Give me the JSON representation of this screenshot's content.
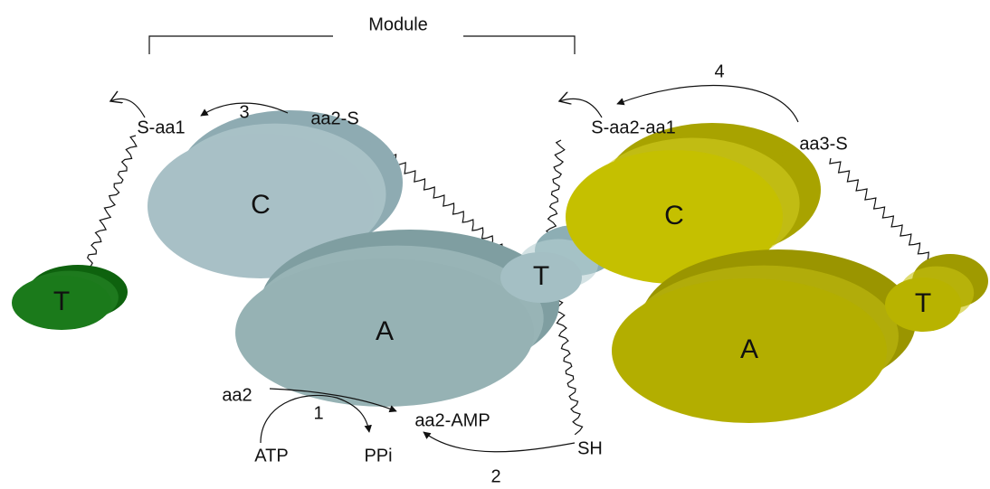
{
  "module_label": "Module",
  "domains": [
    "T",
    "C",
    "A",
    "T",
    "C",
    "A",
    "T"
  ],
  "labels": {
    "s_aa1": "S-aa1",
    "step3": "3",
    "aa2_s": "aa2-S",
    "s_aa2_aa1": "S-aa2-aa1",
    "step4": "4",
    "aa3_s": "aa3-S",
    "aa2": "aa2",
    "step1": "1",
    "aa2_amp": "aa2-AMP",
    "atp": "ATP",
    "ppi": "PPi",
    "sh": "SH",
    "step2": "2"
  }
}
